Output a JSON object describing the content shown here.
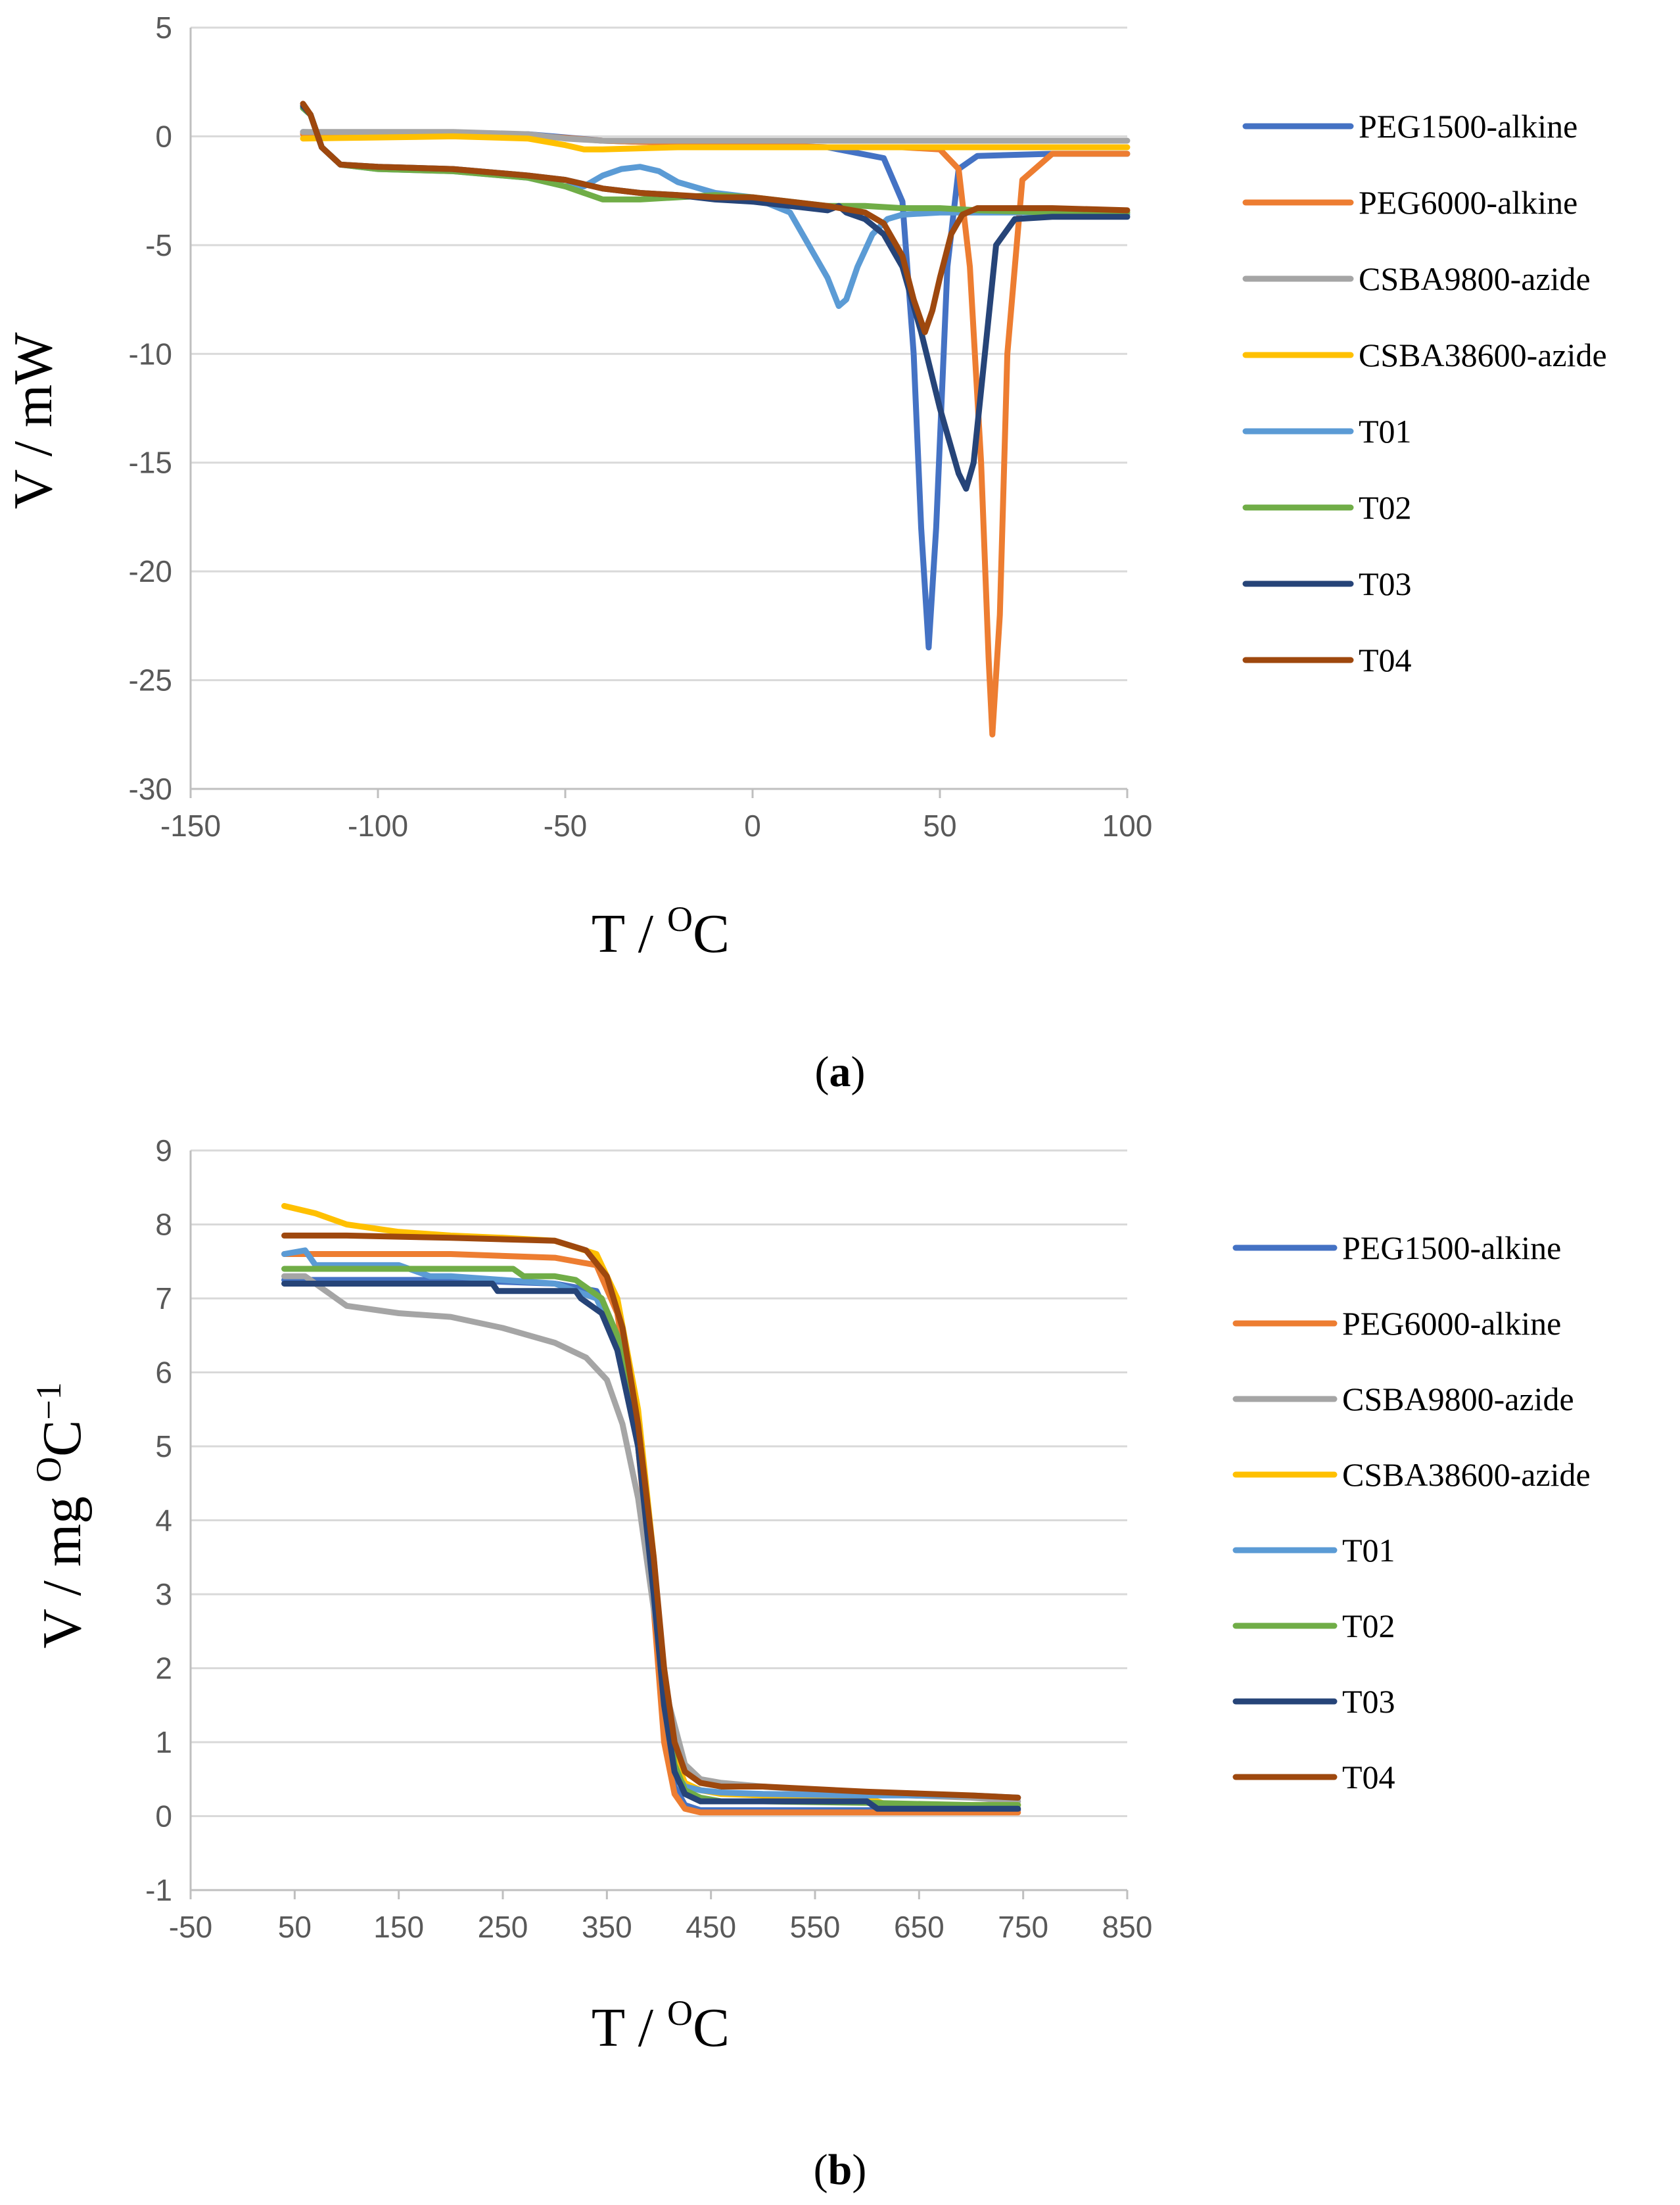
{
  "chart_data": [
    {
      "type": "line",
      "panel_label": "a",
      "xlabel": "T / ",
      "xlabel_sup": "O",
      "xlabel_tail": "C",
      "ylabel": "V / mW",
      "xlim": [
        -150,
        100
      ],
      "ylim": [
        -30,
        5
      ],
      "xticks": [
        -150,
        -100,
        -50,
        0,
        50,
        100
      ],
      "yticks": [
        -30,
        -25,
        -20,
        -15,
        -10,
        -5,
        0,
        5
      ],
      "grid": true,
      "legend_position": "right",
      "series": [
        {
          "name": "PEG1500-alkine",
          "color": "#4472c4",
          "x": [
            -120,
            -110,
            -80,
            -60,
            -40,
            -20,
            0,
            20,
            35,
            40,
            43,
            45,
            47,
            49,
            52,
            55,
            60,
            80,
            100
          ],
          "y": [
            0.2,
            0.15,
            0.1,
            0.1,
            -0.2,
            -0.3,
            -0.4,
            -0.5,
            -1.0,
            -3.0,
            -10.0,
            -18.0,
            -23.5,
            -18.0,
            -6.0,
            -1.5,
            -0.9,
            -0.8,
            -0.8
          ]
        },
        {
          "name": "PEG6000-alkine",
          "color": "#ed7d31",
          "x": [
            -120,
            -100,
            -80,
            -60,
            -40,
            -20,
            0,
            20,
            40,
            50,
            55,
            58,
            61,
            63,
            64,
            66,
            68,
            72,
            80,
            100
          ],
          "y": [
            0.1,
            0.1,
            0.1,
            0.05,
            -0.2,
            -0.3,
            -0.4,
            -0.5,
            -0.5,
            -0.6,
            -1.5,
            -6.0,
            -15.0,
            -24.0,
            -27.5,
            -22.0,
            -10.0,
            -2.0,
            -0.8,
            -0.8
          ]
        },
        {
          "name": "CSBA9800-azide",
          "color": "#a5a5a5",
          "x": [
            -120,
            -100,
            -80,
            -60,
            -50,
            -40,
            -20,
            0,
            20,
            40,
            60,
            80,
            100
          ],
          "y": [
            0.2,
            0.2,
            0.2,
            0.1,
            -0.1,
            -0.2,
            -0.2,
            -0.2,
            -0.2,
            -0.2,
            -0.2,
            -0.2,
            -0.2
          ]
        },
        {
          "name": "CSBA38600-azide",
          "color": "#ffc000",
          "x": [
            -120,
            -100,
            -80,
            -60,
            -50,
            -45,
            -40,
            -20,
            0,
            20,
            40,
            60,
            80,
            100
          ],
          "y": [
            -0.1,
            -0.05,
            0.0,
            -0.1,
            -0.4,
            -0.6,
            -0.6,
            -0.5,
            -0.5,
            -0.5,
            -0.5,
            -0.5,
            -0.5,
            -0.5
          ]
        },
        {
          "name": "T01",
          "color": "#5b9bd5",
          "x": [
            -120,
            -118,
            -115,
            -110,
            -100,
            -80,
            -60,
            -50,
            -45,
            -40,
            -35,
            -30,
            -25,
            -20,
            -10,
            0,
            10,
            15,
            20,
            23,
            25,
            28,
            32,
            36,
            40,
            50,
            60,
            80,
            100
          ],
          "y": [
            1.3,
            1.0,
            -0.5,
            -1.3,
            -1.5,
            -1.6,
            -1.9,
            -2.3,
            -2.3,
            -1.8,
            -1.5,
            -1.4,
            -1.6,
            -2.1,
            -2.6,
            -2.8,
            -3.5,
            -5.0,
            -6.5,
            -7.8,
            -7.5,
            -6.0,
            -4.5,
            -3.8,
            -3.6,
            -3.5,
            -3.5,
            -3.5,
            -3.6
          ]
        },
        {
          "name": "T02",
          "color": "#70ad47",
          "x": [
            -120,
            -118,
            -115,
            -110,
            -100,
            -80,
            -60,
            -50,
            -45,
            -40,
            -30,
            -20,
            -10,
            0,
            20,
            30,
            40,
            50,
            60,
            80,
            100
          ],
          "y": [
            1.3,
            1.0,
            -0.5,
            -1.3,
            -1.5,
            -1.6,
            -1.9,
            -2.3,
            -2.6,
            -2.9,
            -2.9,
            -2.8,
            -2.7,
            -2.8,
            -3.2,
            -3.2,
            -3.3,
            -3.3,
            -3.4,
            -3.5,
            -3.5
          ]
        },
        {
          "name": "T03",
          "color": "#264478",
          "x": [
            -120,
            -118,
            -115,
            -110,
            -100,
            -80,
            -60,
            -50,
            -40,
            -30,
            -20,
            -10,
            0,
            10,
            20,
            23,
            25,
            30,
            35,
            40,
            45,
            50,
            55,
            57,
            59,
            62,
            65,
            70,
            80,
            100
          ],
          "y": [
            1.4,
            1.0,
            -0.5,
            -1.3,
            -1.4,
            -1.5,
            -1.8,
            -2.0,
            -2.4,
            -2.6,
            -2.7,
            -2.9,
            -3.0,
            -3.2,
            -3.4,
            -3.2,
            -3.5,
            -3.8,
            -4.5,
            -6.0,
            -9.0,
            -12.5,
            -15.5,
            -16.2,
            -15.0,
            -10.0,
            -5.0,
            -3.8,
            -3.7,
            -3.7
          ]
        },
        {
          "name": "T04",
          "color": "#9e480e",
          "x": [
            -120,
            -118,
            -115,
            -110,
            -100,
            -80,
            -60,
            -50,
            -40,
            -30,
            -20,
            -10,
            0,
            10,
            20,
            30,
            35,
            40,
            43,
            46,
            48,
            50,
            53,
            56,
            60,
            70,
            80,
            100
          ],
          "y": [
            1.5,
            1.0,
            -0.5,
            -1.3,
            -1.4,
            -1.5,
            -1.8,
            -2.0,
            -2.4,
            -2.6,
            -2.7,
            -2.8,
            -2.8,
            -3.0,
            -3.2,
            -3.5,
            -4.0,
            -5.5,
            -7.5,
            -9.0,
            -8.0,
            -6.5,
            -4.5,
            -3.6,
            -3.3,
            -3.3,
            -3.3,
            -3.4
          ]
        }
      ]
    },
    {
      "type": "line",
      "panel_label": "b",
      "xlabel": "T / ",
      "xlabel_sup": "O",
      "xlabel_tail": "C",
      "ylabel": "V / mg ",
      "ylabel_sup": "O",
      "ylabel_mid": "C",
      "ylabel_sup2": "−1",
      "xlim": [
        -50,
        850
      ],
      "ylim": [
        -1,
        9
      ],
      "xticks": [
        -50,
        50,
        150,
        250,
        350,
        450,
        550,
        650,
        750,
        850
      ],
      "yticks": [
        -1,
        0,
        1,
        2,
        3,
        4,
        5,
        6,
        7,
        8,
        9
      ],
      "grid": true,
      "legend_position": "right",
      "series": [
        {
          "name": "PEG1500-alkine",
          "color": "#4472c4",
          "x": [
            40,
            100,
            200,
            300,
            340,
            360,
            380,
            395,
            405,
            415,
            425,
            440,
            460,
            500,
            600,
            700,
            745
          ],
          "y": [
            7.25,
            7.25,
            7.25,
            7.2,
            7.1,
            6.5,
            5.0,
            3.0,
            1.2,
            0.4,
            0.15,
            0.08,
            0.08,
            0.08,
            0.08,
            0.08,
            0.08
          ]
        },
        {
          "name": "PEG6000-alkine",
          "color": "#ed7d31",
          "x": [
            40,
            100,
            200,
            300,
            340,
            360,
            380,
            395,
            405,
            415,
            425,
            440,
            460,
            500,
            600,
            700,
            745
          ],
          "y": [
            7.6,
            7.6,
            7.6,
            7.55,
            7.45,
            6.8,
            5.0,
            2.8,
            1.0,
            0.3,
            0.1,
            0.05,
            0.05,
            0.05,
            0.05,
            0.05,
            0.05
          ]
        },
        {
          "name": "CSBA9800-azide",
          "color": "#a5a5a5",
          "x": [
            40,
            60,
            80,
            100,
            150,
            200,
            250,
            300,
            330,
            350,
            365,
            380,
            395,
            410,
            425,
            440,
            460,
            500,
            600,
            700,
            745
          ],
          "y": [
            7.3,
            7.3,
            7.1,
            6.9,
            6.8,
            6.75,
            6.6,
            6.4,
            6.2,
            5.9,
            5.3,
            4.3,
            2.8,
            1.5,
            0.7,
            0.5,
            0.45,
            0.4,
            0.3,
            0.25,
            0.2
          ]
        },
        {
          "name": "CSBA38600-azide",
          "color": "#ffc000",
          "x": [
            40,
            70,
            100,
            150,
            200,
            250,
            300,
            340,
            360,
            380,
            395,
            405,
            415,
            425,
            440,
            460,
            500,
            600,
            620,
            640,
            700,
            745
          ],
          "y": [
            8.25,
            8.15,
            8.0,
            7.9,
            7.85,
            7.82,
            7.78,
            7.6,
            7.0,
            5.5,
            3.5,
            1.8,
            0.8,
            0.45,
            0.35,
            0.3,
            0.28,
            0.25,
            0.15,
            0.15,
            0.15,
            0.15
          ]
        },
        {
          "name": "T01",
          "color": "#5b9bd5",
          "x": [
            40,
            60,
            70,
            100,
            150,
            180,
            200,
            250,
            300,
            340,
            360,
            380,
            395,
            405,
            415,
            425,
            440,
            460,
            500,
            600,
            700,
            745
          ],
          "y": [
            7.6,
            7.65,
            7.45,
            7.45,
            7.45,
            7.3,
            7.3,
            7.25,
            7.2,
            7.0,
            6.4,
            5.0,
            3.0,
            1.5,
            0.6,
            0.4,
            0.35,
            0.32,
            0.3,
            0.28,
            0.28,
            0.25
          ]
        },
        {
          "name": "T02",
          "color": "#70ad47",
          "x": [
            40,
            100,
            200,
            260,
            270,
            300,
            320,
            345,
            360,
            380,
            395,
            405,
            415,
            425,
            440,
            460,
            500,
            600,
            700,
            745
          ],
          "y": [
            7.4,
            7.4,
            7.4,
            7.4,
            7.3,
            7.3,
            7.25,
            7.0,
            6.5,
            5.2,
            3.2,
            1.7,
            0.7,
            0.35,
            0.25,
            0.2,
            0.2,
            0.18,
            0.15,
            0.15
          ]
        },
        {
          "name": "T03",
          "color": "#264478",
          "x": [
            40,
            100,
            200,
            240,
            245,
            300,
            320,
            325,
            345,
            360,
            380,
            395,
            405,
            415,
            425,
            440,
            460,
            500,
            600,
            610,
            700,
            745
          ],
          "y": [
            7.2,
            7.2,
            7.2,
            7.2,
            7.1,
            7.1,
            7.1,
            7.0,
            6.8,
            6.3,
            5.0,
            3.0,
            1.5,
            0.6,
            0.3,
            0.2,
            0.2,
            0.2,
            0.2,
            0.1,
            0.1,
            0.1
          ]
        },
        {
          "name": "T04",
          "color": "#9e480e",
          "x": [
            40,
            100,
            200,
            300,
            330,
            350,
            365,
            380,
            395,
            405,
            415,
            425,
            440,
            460,
            500,
            600,
            700,
            745
          ],
          "y": [
            7.85,
            7.85,
            7.82,
            7.78,
            7.65,
            7.3,
            6.6,
            5.3,
            3.5,
            2.0,
            1.0,
            0.6,
            0.45,
            0.4,
            0.4,
            0.33,
            0.28,
            0.25
          ]
        }
      ]
    }
  ]
}
